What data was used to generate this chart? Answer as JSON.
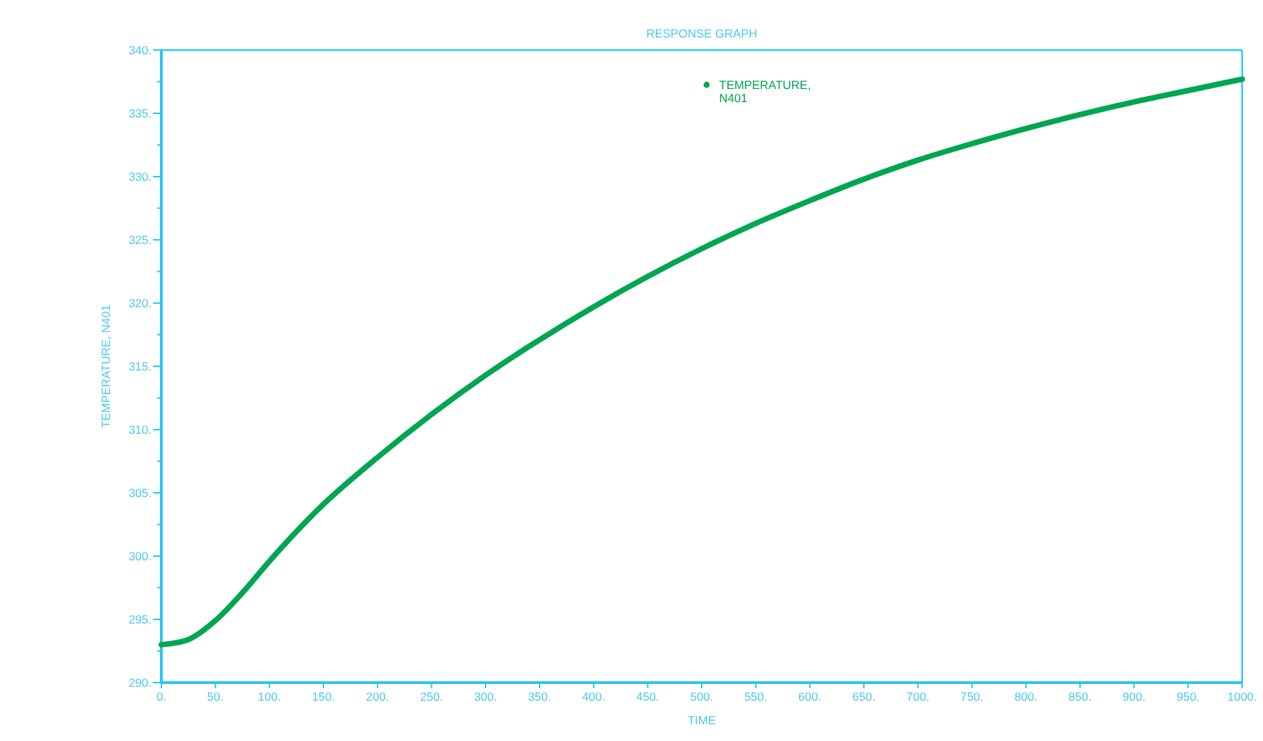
{
  "chart_data": {
    "type": "line",
    "title": "RESPONSE GRAPH",
    "xlabel": "TIME",
    "ylabel": "TEMPERATURE, N401",
    "x": [
      0,
      10,
      25,
      50,
      75,
      100,
      150,
      200,
      250,
      300,
      350,
      400,
      450,
      500,
      550,
      600,
      650,
      700,
      750,
      800,
      850,
      900,
      950,
      1000
    ],
    "series": [
      {
        "name": "TEMPERATURE, N401",
        "color": "#00a651",
        "values": [
          293.0,
          293.1,
          293.4,
          294.9,
          297.1,
          299.6,
          304.1,
          307.8,
          311.2,
          314.3,
          317.1,
          319.7,
          322.1,
          324.3,
          326.3,
          328.1,
          329.8,
          331.3,
          332.6,
          333.8,
          334.9,
          335.9,
          336.8,
          337.7
        ]
      }
    ],
    "xlim": [
      0,
      1000
    ],
    "ylim": [
      290,
      340
    ],
    "xticks": [
      {
        "value": 0,
        "label": "0."
      },
      {
        "value": 50,
        "label": "50."
      },
      {
        "value": 100,
        "label": "100."
      },
      {
        "value": 150,
        "label": "150."
      },
      {
        "value": 200,
        "label": "200."
      },
      {
        "value": 250,
        "label": "250."
      },
      {
        "value": 300,
        "label": "300."
      },
      {
        "value": 350,
        "label": "350."
      },
      {
        "value": 400,
        "label": "400."
      },
      {
        "value": 450,
        "label": "450."
      },
      {
        "value": 500,
        "label": "500."
      },
      {
        "value": 550,
        "label": "550."
      },
      {
        "value": 600,
        "label": "600."
      },
      {
        "value": 650,
        "label": "650."
      },
      {
        "value": 700,
        "label": "700."
      },
      {
        "value": 750,
        "label": "750."
      },
      {
        "value": 800,
        "label": "800."
      },
      {
        "value": 850,
        "label": "850."
      },
      {
        "value": 900,
        "label": "900."
      },
      {
        "value": 950,
        "label": "950."
      },
      {
        "value": 1000,
        "label": "1000."
      }
    ],
    "yticks": [
      {
        "value": 290,
        "label": "290."
      },
      {
        "value": 292.5,
        "label": null
      },
      {
        "value": 295,
        "label": "295."
      },
      {
        "value": 297.5,
        "label": null
      },
      {
        "value": 300,
        "label": "300."
      },
      {
        "value": 302.5,
        "label": null
      },
      {
        "value": 305,
        "label": "305."
      },
      {
        "value": 307.5,
        "label": null
      },
      {
        "value": 310,
        "label": "310."
      },
      {
        "value": 312.5,
        "label": null
      },
      {
        "value": 315,
        "label": "315."
      },
      {
        "value": 317.5,
        "label": null
      },
      {
        "value": 320,
        "label": "320."
      },
      {
        "value": 322.5,
        "label": null
      },
      {
        "value": 325,
        "label": "325."
      },
      {
        "value": 327.5,
        "label": null
      },
      {
        "value": 330,
        "label": "330."
      },
      {
        "value": 332.5,
        "label": null
      },
      {
        "value": 335,
        "label": "335."
      },
      {
        "value": 337.5,
        "label": null
      },
      {
        "value": 340,
        "label": "340."
      }
    ],
    "legend": "top",
    "grid": false,
    "marker": "none",
    "line_style": "solid"
  }
}
